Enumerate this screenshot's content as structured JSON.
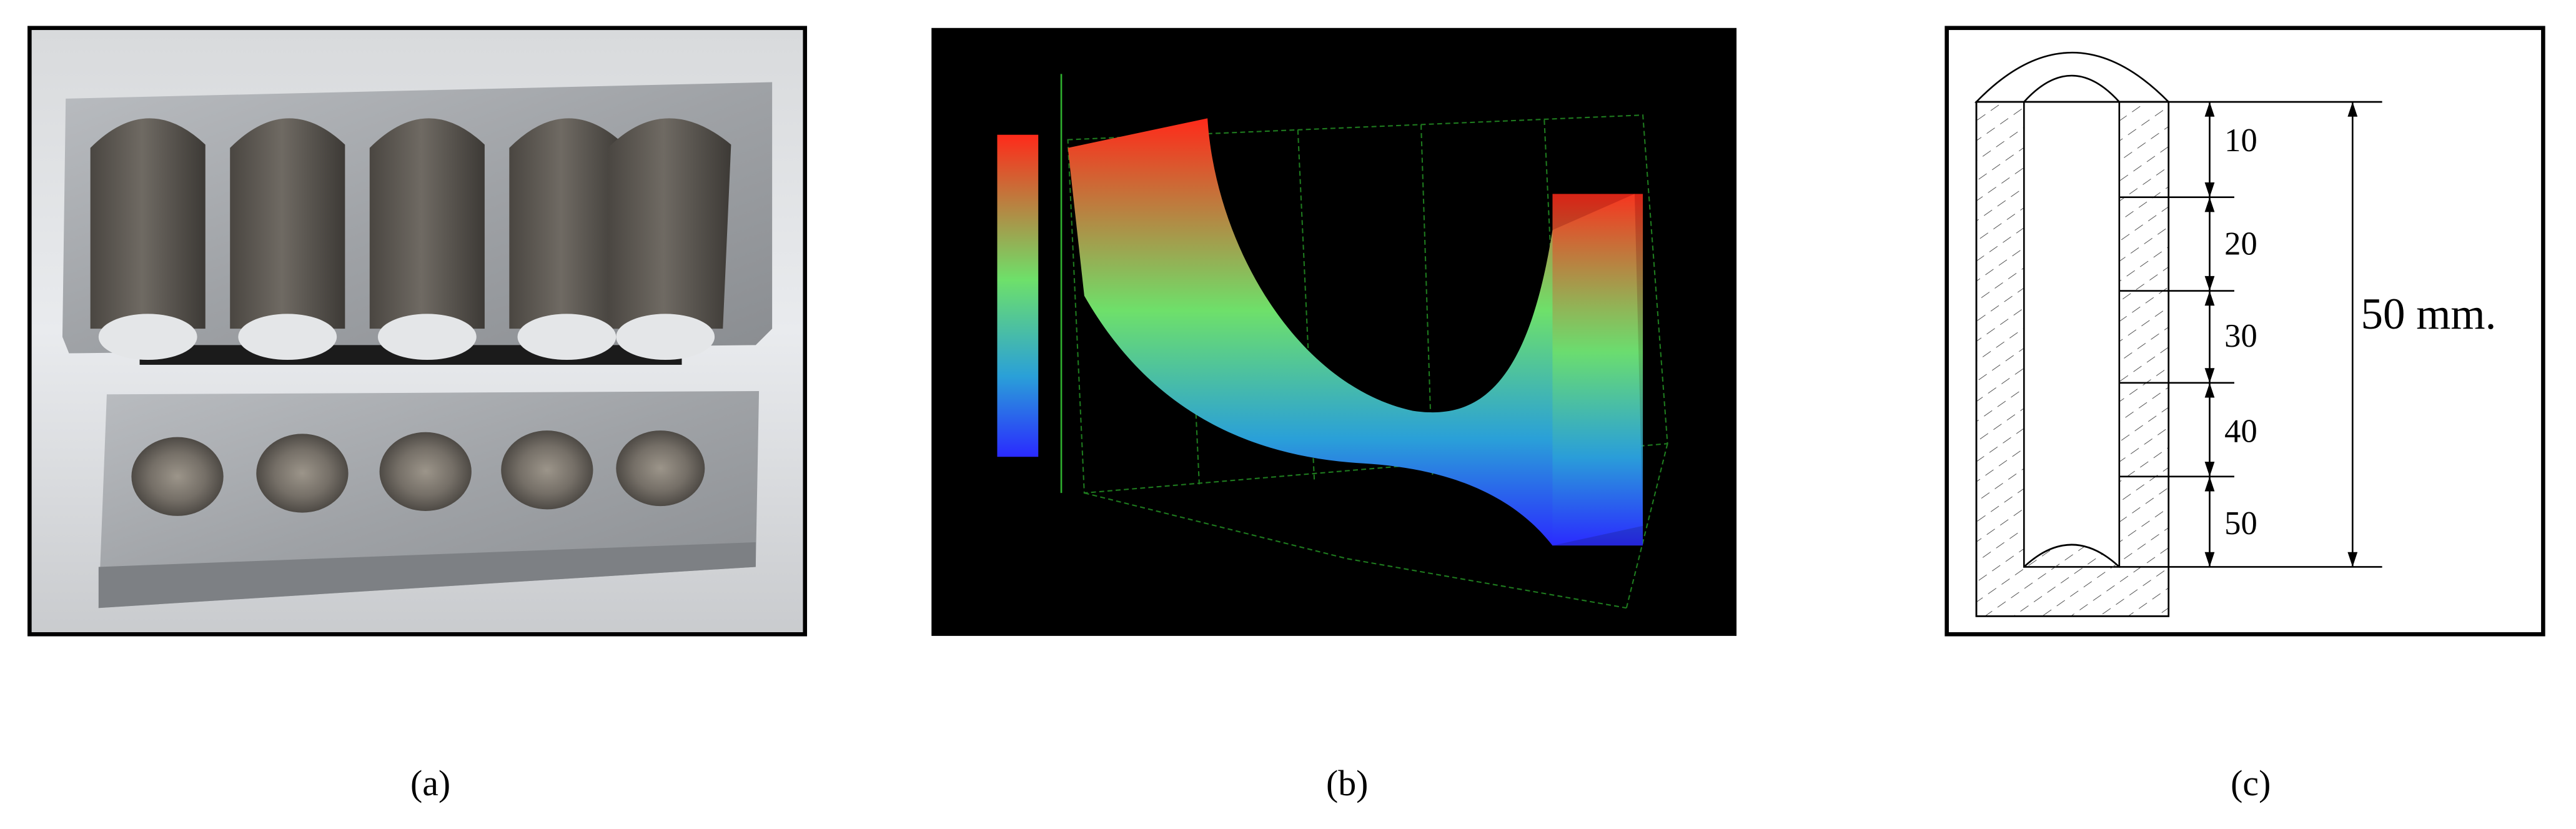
{
  "panels": [
    {
      "caption": "(a)"
    },
    {
      "caption": "(b)"
    },
    {
      "caption": "(c)",
      "depths": [
        "10",
        "20",
        "30",
        "40",
        "50"
      ],
      "total_length": "50 mm."
    }
  ]
}
